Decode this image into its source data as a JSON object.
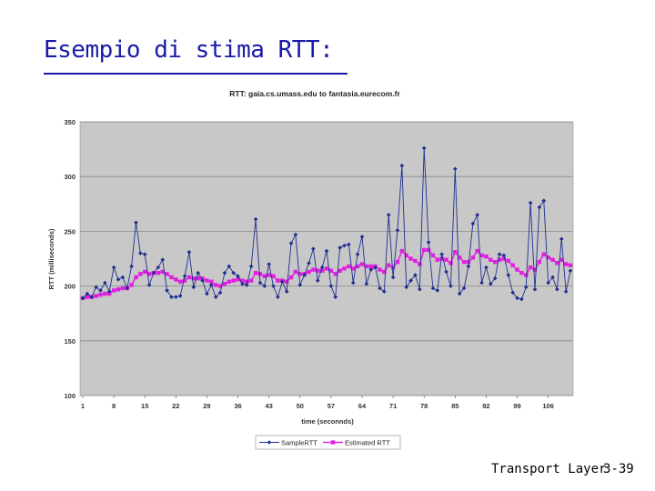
{
  "slide": {
    "title": "Esempio di stima RTT:",
    "footer_left": "Transport Layer",
    "footer_right": "3-39"
  },
  "chart_data": {
    "type": "line",
    "title": "RTT: gaia.cs.umass.edu to fantasia.eurecom.fr",
    "xlabel": "time (seconnds)",
    "ylabel": "RTT (milliseconds)",
    "xlim": [
      1,
      111
    ],
    "ylim": [
      100,
      350
    ],
    "yticks": [
      100,
      150,
      200,
      250,
      300,
      350
    ],
    "xticks": [
      1,
      8,
      15,
      22,
      29,
      36,
      43,
      50,
      57,
      64,
      71,
      78,
      85,
      92,
      99,
      106
    ],
    "grid": "horizontal",
    "legend": "bottom",
    "colors": {
      "plot_bg": "#c8c8c8",
      "sample": "#1f2f8f",
      "estimated": "#e020e0"
    },
    "x": [
      1,
      2,
      3,
      4,
      5,
      6,
      7,
      8,
      9,
      10,
      11,
      12,
      13,
      14,
      15,
      16,
      17,
      18,
      19,
      20,
      21,
      22,
      23,
      24,
      25,
      26,
      27,
      28,
      29,
      30,
      31,
      32,
      33,
      34,
      35,
      36,
      37,
      38,
      39,
      40,
      41,
      42,
      43,
      44,
      45,
      46,
      47,
      48,
      49,
      50,
      51,
      52,
      53,
      54,
      55,
      56,
      57,
      58,
      59,
      60,
      61,
      62,
      63,
      64,
      65,
      66,
      67,
      68,
      69,
      70,
      71,
      72,
      73,
      74,
      75,
      76,
      77,
      78,
      79,
      80,
      81,
      82,
      83,
      84,
      85,
      86,
      87,
      88,
      89,
      90,
      91,
      92,
      93,
      94,
      95,
      96,
      97,
      98,
      99,
      100,
      101,
      102,
      103,
      104,
      105,
      106,
      107,
      108,
      109,
      110,
      111
    ],
    "series": [
      {
        "name": "SampleRTT",
        "marker": "diamond",
        "values": [
          189,
          193,
          190,
          199,
          196,
          203,
          195,
          217,
          206,
          208,
          198,
          218,
          258,
          230,
          229,
          201,
          212,
          217,
          224,
          196,
          190,
          190,
          191,
          209,
          231,
          199,
          212,
          205,
          193,
          201,
          190,
          194,
          212,
          218,
          212,
          209,
          202,
          201,
          218,
          261,
          203,
          200,
          220,
          200,
          190,
          204,
          195,
          239,
          247,
          201,
          210,
          221,
          234,
          205,
          217,
          232,
          200,
          190,
          235,
          237,
          238,
          203,
          229,
          245,
          202,
          215,
          217,
          198,
          195,
          265,
          208,
          251,
          310,
          199,
          205,
          210,
          197,
          326,
          240,
          198,
          196,
          229,
          213,
          200,
          307,
          193,
          198,
          218,
          257,
          265,
          203,
          217,
          202,
          207,
          229,
          228,
          210,
          194,
          189,
          188,
          199,
          276,
          197,
          272,
          278,
          203,
          208,
          197,
          243,
          195,
          214
        ],
        "value_labels": []
      },
      {
        "name": "Estimated RTT",
        "marker": "square",
        "values": [
          189,
          190,
          190,
          191,
          192,
          193,
          193,
          196,
          197,
          198,
          198,
          201,
          208,
          211,
          213,
          211,
          212,
          212,
          213,
          211,
          208,
          206,
          204,
          205,
          208,
          207,
          207,
          207,
          205,
          204,
          201,
          200,
          202,
          204,
          205,
          206,
          205,
          204,
          205,
          212,
          211,
          209,
          210,
          209,
          205,
          205,
          204,
          208,
          213,
          211,
          211,
          213,
          215,
          214,
          214,
          216,
          214,
          211,
          214,
          216,
          218,
          216,
          218,
          220,
          218,
          218,
          218,
          215,
          213,
          219,
          217,
          222,
          232,
          228,
          225,
          223,
          220,
          233,
          233,
          228,
          224,
          225,
          224,
          221,
          231,
          226,
          222,
          222,
          226,
          232,
          228,
          227,
          224,
          222,
          224,
          225,
          223,
          219,
          215,
          212,
          210,
          217,
          215,
          222,
          229,
          226,
          224,
          221,
          224,
          220,
          219
        ]
      }
    ]
  }
}
